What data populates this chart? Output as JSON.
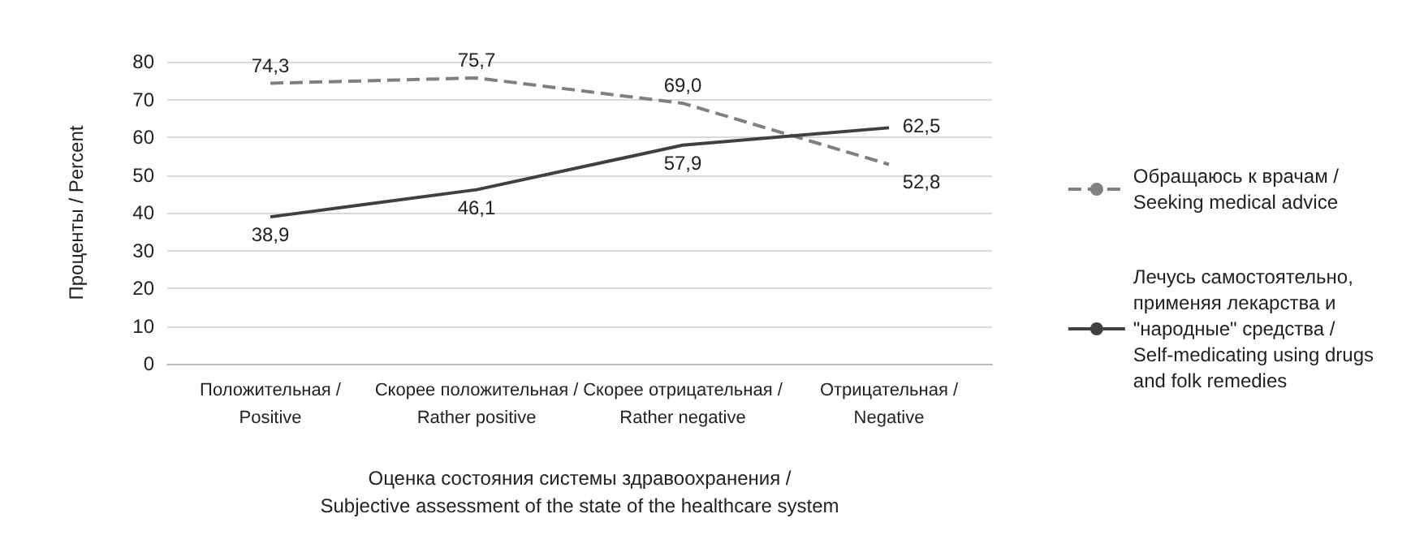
{
  "chart_data": {
    "type": "line",
    "categories": [
      "Положительная /\nPositive",
      "Скорее положительная /\nRather positive",
      "Скорее отрицательная /\nRather negative",
      "Отрицательная /\nNegative"
    ],
    "xlabel": "Оценка состояния системы здравоохранения /\nSubjective assessment of the state of the healthcare system",
    "ylabel": "Проценты / Percent",
    "series": [
      {
        "name": "Обращаюсь к врачам /\nSeeking medical advice",
        "color": "#808080",
        "line_style": "dashed",
        "values": [
          74.3,
          75.7,
          69.0,
          52.8
        ],
        "value_labels": [
          "74,3",
          "75,7",
          "69,0",
          "52,8"
        ]
      },
      {
        "name": "Лечусь самостоятельно,\nприменяя лекарства и\n\"народные\" средства /\nSelf-medicating using drugs\nand folk remedies",
        "color": "#404040",
        "line_style": "solid",
        "values": [
          38.9,
          46.1,
          57.9,
          62.5
        ],
        "value_labels": [
          "38,9",
          "46,1",
          "57,9",
          "62,5"
        ]
      }
    ],
    "ylim": [
      0,
      80
    ],
    "yticks": [
      0,
      10,
      20,
      30,
      40,
      50,
      60,
      70,
      80
    ],
    "grid": "y",
    "legend": "right",
    "marker": "none"
  }
}
